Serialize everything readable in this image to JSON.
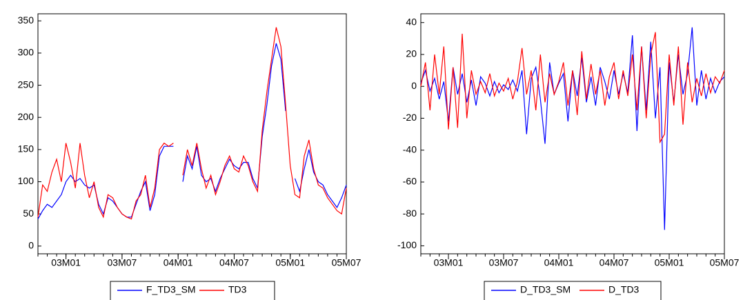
{
  "chart_data": [
    {
      "type": "line",
      "legend": "bottom",
      "categories": [
        null,
        null,
        null,
        null,
        null,
        null,
        "03M01",
        null,
        null,
        null,
        null,
        null,
        null,
        null,
        null,
        null,
        null,
        null,
        "03M07",
        null,
        null,
        null,
        null,
        null,
        null,
        null,
        null,
        null,
        null,
        null,
        "04M01",
        null,
        null,
        null,
        null,
        null,
        null,
        null,
        null,
        null,
        null,
        null,
        "04M07",
        null,
        null,
        null,
        null,
        null,
        null,
        null,
        null,
        null,
        null,
        null,
        "05M01",
        null,
        null,
        null,
        null,
        null,
        null,
        null,
        null,
        null,
        null,
        null,
        "05M07"
      ],
      "ylim": [
        -12,
        361
      ],
      "yticks": [
        0,
        50,
        100,
        150,
        200,
        250,
        300,
        350
      ],
      "series": [
        {
          "name": "F_TD3_SM",
          "color": "#0000ff",
          "values": [
            42,
            55,
            65,
            60,
            70,
            80,
            100,
            110,
            100,
            105,
            95,
            90,
            95,
            65,
            50,
            75,
            70,
            60,
            50,
            45,
            45,
            65,
            85,
            100,
            55,
            80,
            140,
            155,
            155,
            155,
            null,
            100,
            140,
            120,
            155,
            110,
            100,
            105,
            85,
            105,
            120,
            135,
            125,
            120,
            130,
            130,
            105,
            90,
            170,
            220,
            280,
            315,
            290,
            210,
            null,
            105,
            85,
            120,
            150,
            115,
            100,
            95,
            80,
            70,
            60,
            75,
            95
          ]
        },
        {
          "name": "TD3",
          "color": "#ff0000",
          "values": [
            45,
            95,
            85,
            115,
            135,
            100,
            160,
            130,
            90,
            160,
            110,
            75,
            100,
            60,
            45,
            80,
            75,
            60,
            50,
            45,
            42,
            70,
            80,
            110,
            60,
            90,
            150,
            160,
            155,
            160,
            null,
            110,
            150,
            125,
            160,
            120,
            90,
            110,
            80,
            100,
            125,
            140,
            120,
            115,
            140,
            125,
            100,
            85,
            180,
            240,
            290,
            340,
            310,
            220,
            125,
            80,
            75,
            140,
            165,
            120,
            95,
            90,
            75,
            65,
            55,
            50,
            90
          ]
        }
      ]
    },
    {
      "type": "line",
      "legend": "bottom",
      "categories": [
        null,
        null,
        null,
        null,
        null,
        null,
        "03M01",
        null,
        null,
        null,
        null,
        null,
        null,
        null,
        null,
        null,
        null,
        null,
        "03M07",
        null,
        null,
        null,
        null,
        null,
        null,
        null,
        null,
        null,
        null,
        null,
        "04M01",
        null,
        null,
        null,
        null,
        null,
        null,
        null,
        null,
        null,
        null,
        null,
        "04M07",
        null,
        null,
        null,
        null,
        null,
        null,
        null,
        null,
        null,
        null,
        null,
        "05M01",
        null,
        null,
        null,
        null,
        null,
        null,
        null,
        null,
        null,
        null,
        null,
        "05M07"
      ],
      "ylim": [
        -105,
        45.5
      ],
      "yticks": [
        -100,
        -80,
        -60,
        -40,
        -20,
        0,
        20,
        40
      ],
      "series": [
        {
          "name": "D_TD3_SM",
          "color": "#0000ff",
          "values": [
            2,
            10,
            -3,
            5,
            -8,
            3,
            -22,
            12,
            -5,
            8,
            -10,
            4,
            -12,
            6,
            2,
            -6,
            3,
            -4,
            1,
            -2,
            4,
            -3,
            10,
            -30,
            5,
            12,
            -8,
            -36,
            15,
            -5,
            2,
            8,
            -22,
            10,
            -6,
            18,
            -10,
            6,
            -12,
            12,
            3,
            -8,
            10,
            -5,
            8,
            -4,
            32,
            -28,
            25,
            -15,
            28,
            -20,
            12,
            -90,
            15,
            -10,
            20,
            -5,
            8,
            37,
            -12,
            10,
            -8,
            5,
            -4,
            3,
            6
          ]
        },
        {
          "name": "D_TD3",
          "color": "#ff0000",
          "values": [
            0,
            15,
            -15,
            20,
            -5,
            25,
            -27,
            12,
            -26,
            33,
            -20,
            10,
            -5,
            3,
            -4,
            8,
            -6,
            2,
            -3,
            5,
            -8,
            3,
            24,
            -5,
            10,
            -15,
            20,
            -10,
            8,
            -5,
            3,
            15,
            -12,
            10,
            -18,
            22,
            -8,
            14,
            -5,
            10,
            -12,
            6,
            15,
            -8,
            10,
            -6,
            20,
            -15,
            25,
            -20,
            20,
            34,
            -35,
            -30,
            20,
            -12,
            25,
            -24,
            15,
            -10,
            5,
            -6,
            8,
            -4,
            6,
            2,
            10
          ]
        }
      ]
    }
  ]
}
